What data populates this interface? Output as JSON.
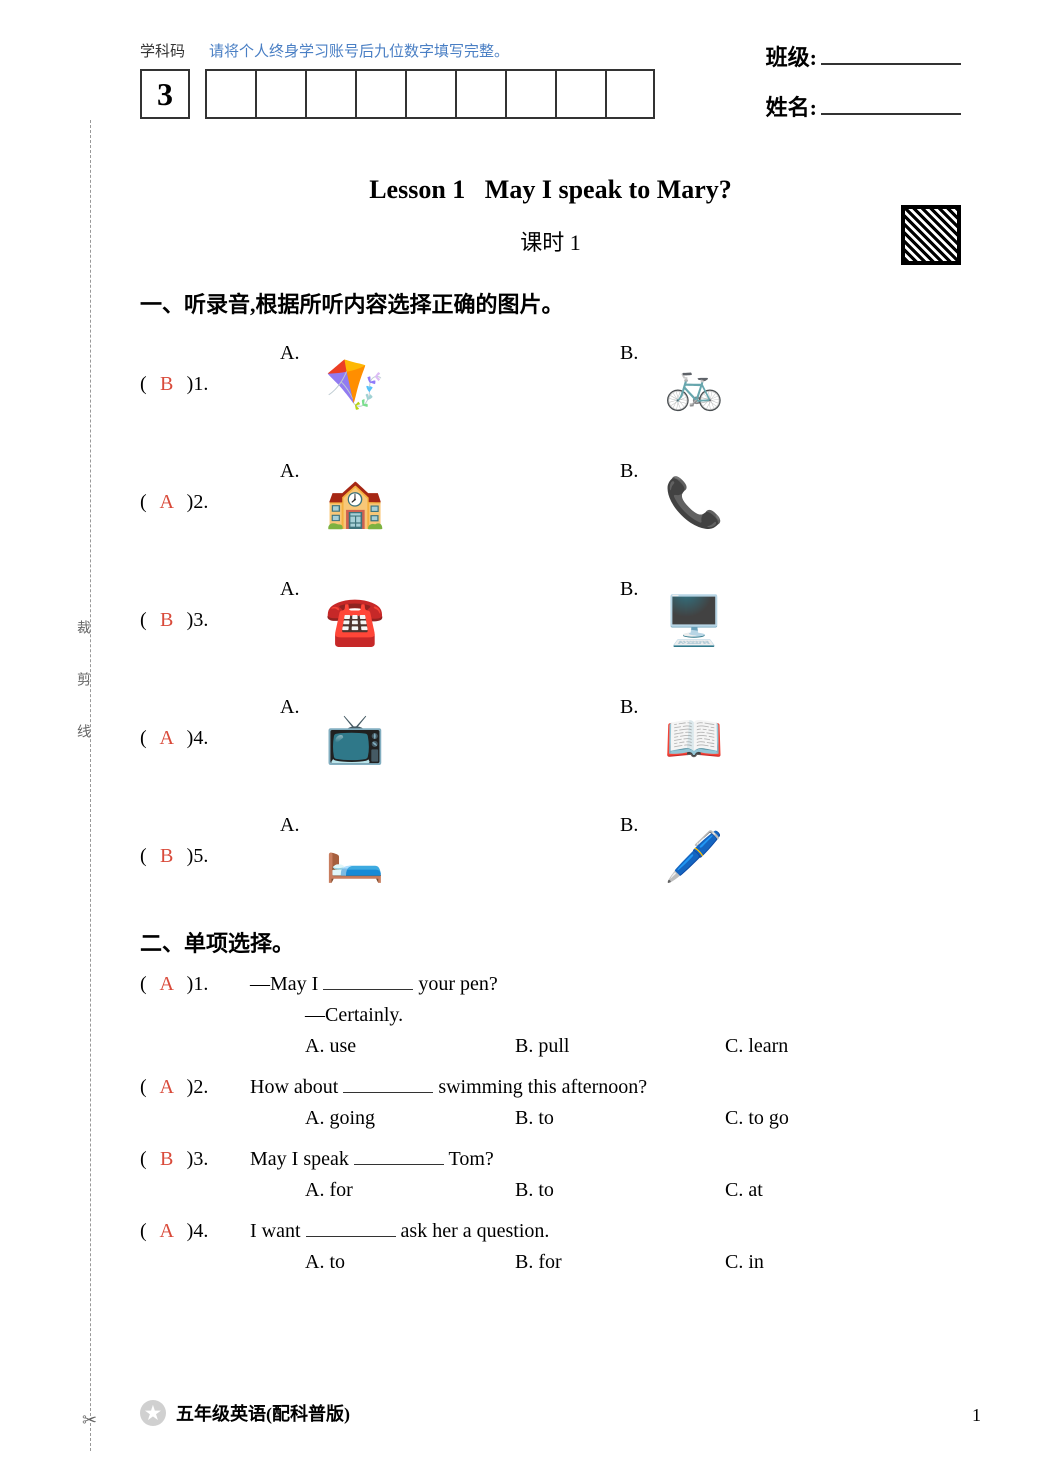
{
  "header": {
    "subject_code_label": "学科码",
    "account_hint": "请将个人终身学习账号后九位数字填写完整。",
    "digit": "3",
    "grid_count": 9,
    "class_label": "班级:",
    "name_label": "姓名:"
  },
  "lesson": {
    "number": "Lesson 1",
    "title_en": "May I speak to Mary?",
    "sub_title": "课时 1"
  },
  "section1": {
    "title": "一、听录音,根据所听内容选择正确的图片。",
    "questions": [
      {
        "num": "1.",
        "answer": "B",
        "a_label": "A.",
        "b_label": "B.",
        "a_icon": "🪁",
        "b_icon": "🚲"
      },
      {
        "num": "2.",
        "answer": "A",
        "a_label": "A.",
        "b_label": "B.",
        "a_icon": "🏫",
        "b_icon": "📞"
      },
      {
        "num": "3.",
        "answer": "B",
        "a_label": "A.",
        "b_label": "B.",
        "a_icon": "☎️",
        "b_icon": "🖥️"
      },
      {
        "num": "4.",
        "answer": "A",
        "a_label": "A.",
        "b_label": "B.",
        "a_icon": "📺",
        "b_icon": "📖"
      },
      {
        "num": "5.",
        "answer": "B",
        "a_label": "A.",
        "b_label": "B.",
        "a_icon": "🛏️",
        "b_icon": "🖊️"
      }
    ]
  },
  "section2": {
    "title": "二、单项选择。",
    "questions": [
      {
        "num": "1.",
        "answer": "A",
        "stem_pre": "—May I ",
        "stem_post": " your pen?",
        "sub": "—Certainly.",
        "opts": {
          "a": "A. use",
          "b": "B. pull",
          "c": "C. learn"
        }
      },
      {
        "num": "2.",
        "answer": "A",
        "stem_pre": "How about ",
        "stem_post": " swimming this afternoon?",
        "sub": "",
        "opts": {
          "a": "A. going",
          "b": "B. to",
          "c": "C. to go"
        }
      },
      {
        "num": "3.",
        "answer": "B",
        "stem_pre": "May I speak ",
        "stem_post": " Tom?",
        "sub": "",
        "opts": {
          "a": "A. for",
          "b": "B. to",
          "c": "C. at"
        }
      },
      {
        "num": "4.",
        "answer": "A",
        "stem_pre": "I want ",
        "stem_post": " ask her a question.",
        "sub": "",
        "opts": {
          "a": "A. to",
          "b": "B. for",
          "c": "C. in"
        }
      }
    ]
  },
  "footer": {
    "text": "五年级英语(配科普版)",
    "page": "1"
  },
  "margin": {
    "vertical_text": "裁　剪　线"
  },
  "colors": {
    "answer": "#d94a3a",
    "hint": "#4a7fc4",
    "text": "#333333",
    "background": "#ffffff"
  }
}
